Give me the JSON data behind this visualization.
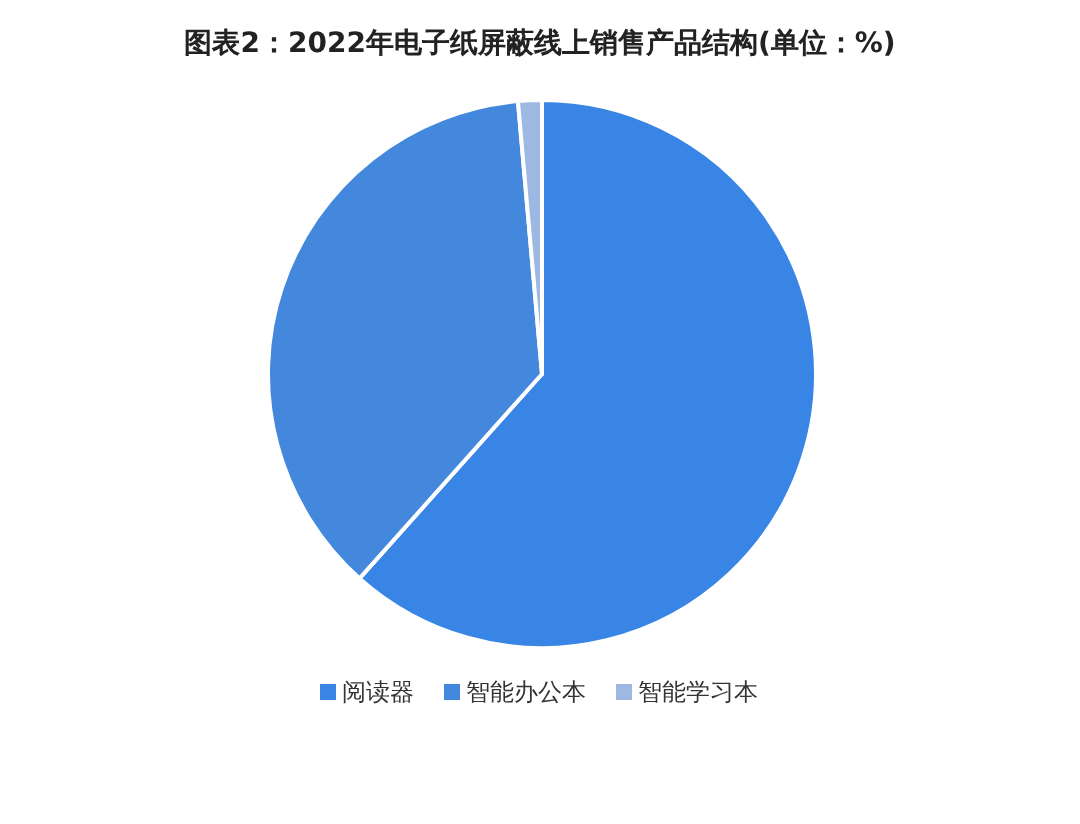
{
  "chart_data": {
    "type": "pie",
    "title": "图表2：2022年电子纸屏蔽线上销售产品结构(单位：%)",
    "categories": [
      "阅读器",
      "智能办公本",
      "智能学习本"
    ],
    "values": [
      61.6,
      37.0,
      1.4
    ],
    "colors": [
      "#3885e6",
      "#4388dc",
      "#9db8e2"
    ],
    "legend": "bottom"
  }
}
